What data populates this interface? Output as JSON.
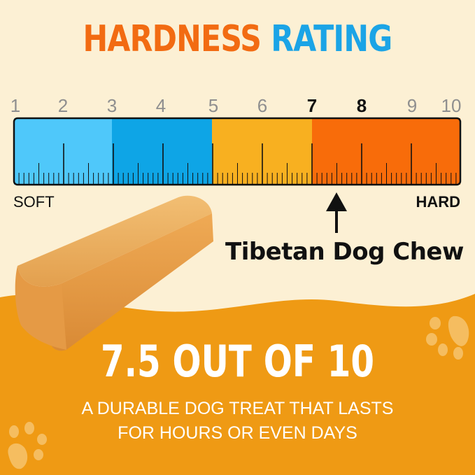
{
  "title": {
    "part1": "HARDNESS",
    "part2": "RATING"
  },
  "scale": {
    "numbers": [
      "1",
      "2",
      "3",
      "4",
      "5",
      "6",
      "7",
      "8",
      "9",
      "10"
    ],
    "highlighted": [
      "7",
      "8"
    ],
    "soft_label": "SOFT",
    "hard_label": "HARD",
    "segment_colors": [
      "#4FC8FA",
      "#0EA5E6",
      "#F8B020",
      "#F86C0A"
    ],
    "rating_value": 7.5
  },
  "product": {
    "name": "Tibetan Dog Chew"
  },
  "rating": {
    "headline": "7.5 OUT OF 10",
    "line1": "A DURABLE DOG TREAT THAT LASTS",
    "line2": "FOR HOURS OR EVEN DAYS"
  },
  "colors": {
    "background": "#FCF0D4",
    "orange_band": "#EF9A14",
    "title_orange": "#F26B12",
    "title_blue": "#1BA4E6"
  }
}
